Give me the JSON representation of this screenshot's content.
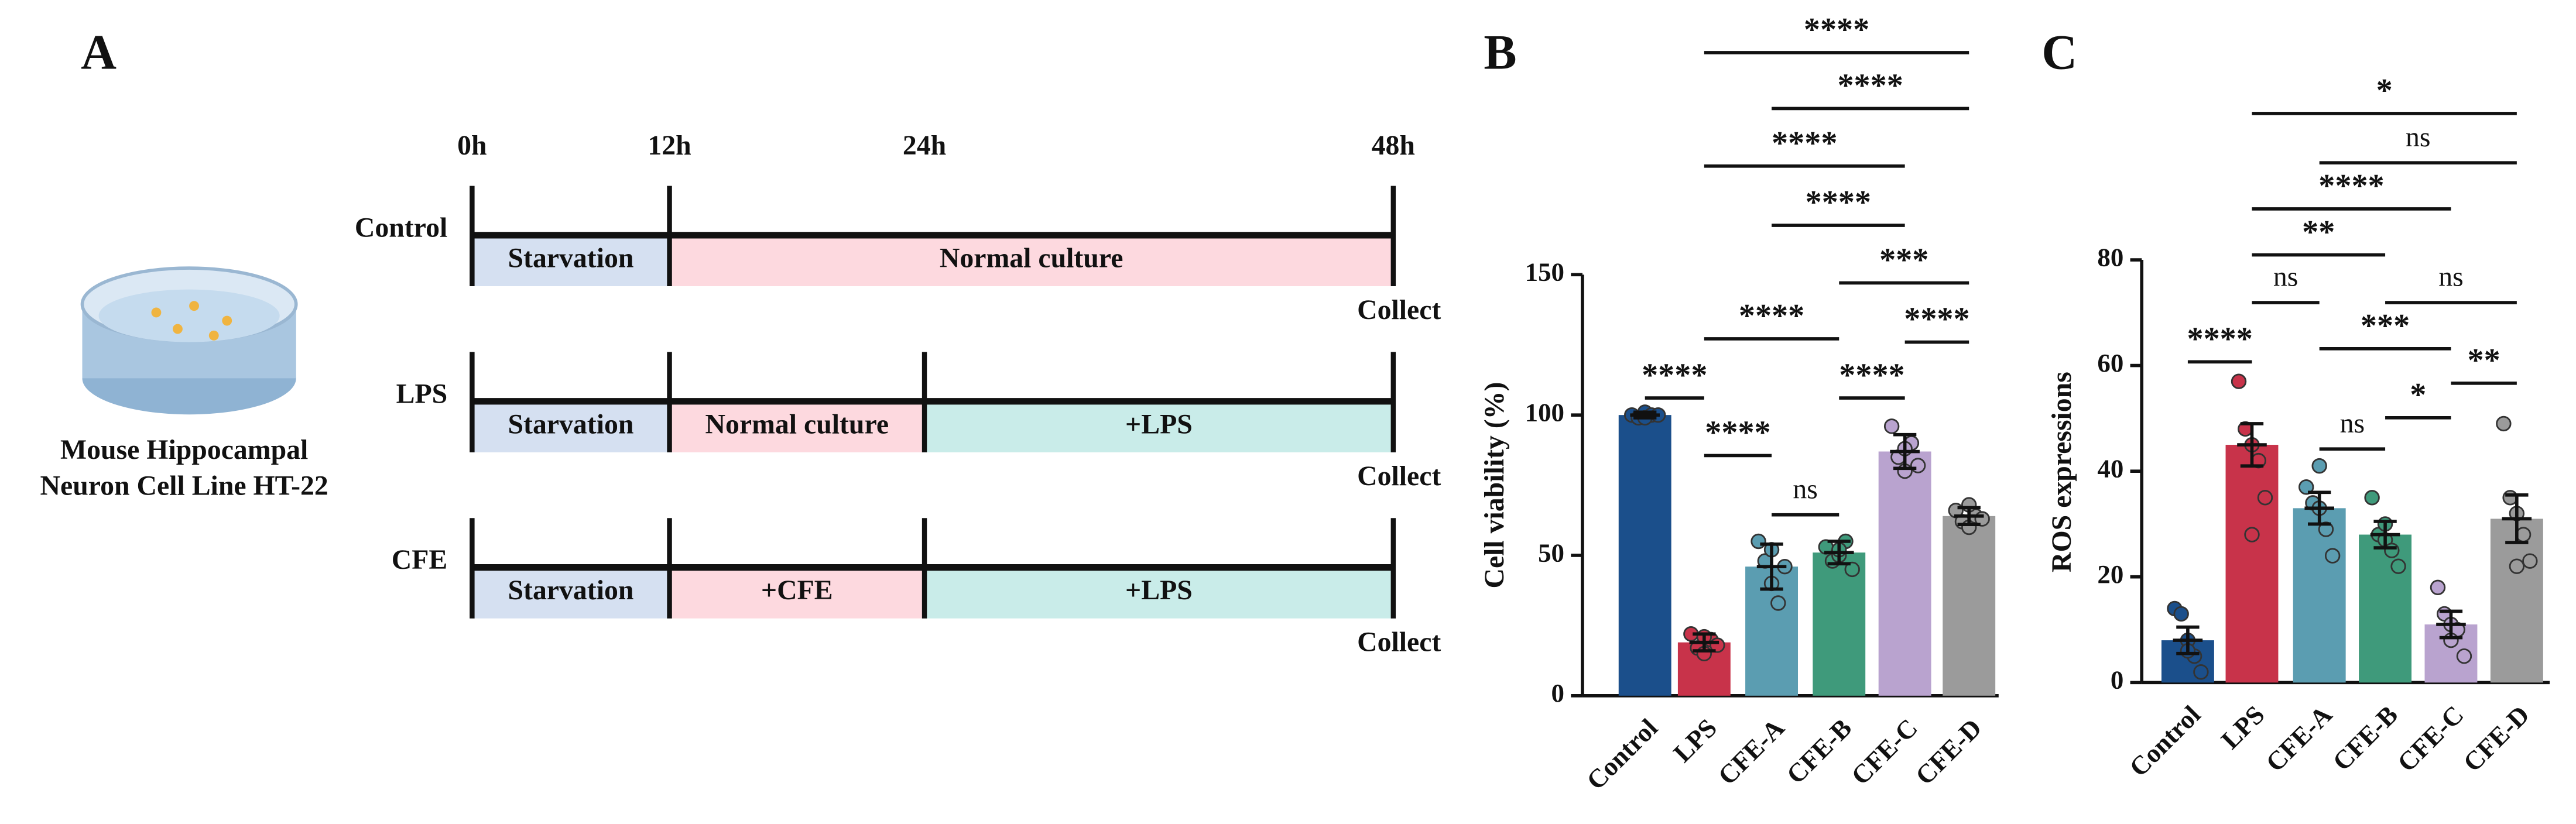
{
  "panel_a": {
    "letter": "A",
    "times": [
      "0h",
      "12h",
      "24h",
      "48h"
    ],
    "rows": [
      {
        "label": "Control",
        "segments": [
          {
            "text": "Starvation",
            "start": "0h",
            "end": "12h",
            "color": "#d5e0f1"
          },
          {
            "text": "Normal culture",
            "start": "12h",
            "end": "48h",
            "color": "#fdd9df"
          }
        ],
        "end_label": "Collect"
      },
      {
        "label": "LPS",
        "segments": [
          {
            "text": "Starvation",
            "start": "0h",
            "end": "12h",
            "color": "#d5e0f1"
          },
          {
            "text": "Normal culture",
            "start": "12h",
            "end": "24h",
            "color": "#fdd9df"
          },
          {
            "text": "+LPS",
            "start": "24h",
            "end": "48h",
            "color": "#c9ece9"
          }
        ],
        "end_label": "Collect"
      },
      {
        "label": "CFE",
        "segments": [
          {
            "text": "Starvation",
            "start": "0h",
            "end": "12h",
            "color": "#d5e0f1"
          },
          {
            "text": "+CFE",
            "start": "12h",
            "end": "24h",
            "color": "#fdd9df"
          },
          {
            "text": "+LPS",
            "start": "24h",
            "end": "48h",
            "color": "#c9ece9"
          }
        ],
        "end_label": "Collect"
      }
    ],
    "caption": [
      "Mouse Hippocampal",
      "Neuron Cell Line HT-22"
    ]
  },
  "chart_data": [
    {
      "type": "bar",
      "letter": "B",
      "ylabel": "Cell viability (%)",
      "categories": [
        "Control",
        "LPS",
        "CFE-A",
        "CFE-B",
        "CFE-C",
        "CFE-D"
      ],
      "colors": [
        "#1b4f8b",
        "#c8334a",
        "#5b9db1",
        "#3f9a7b",
        "#b9a3cf",
        "#9b9b9b"
      ],
      "values": [
        100,
        19,
        46,
        51,
        87,
        64
      ],
      "errors": [
        1,
        3,
        8,
        4,
        6,
        3
      ],
      "points": [
        [
          100,
          99,
          101,
          100,
          100,
          99
        ],
        [
          22,
          17,
          15,
          20,
          18,
          21
        ],
        [
          55,
          48,
          40,
          33,
          46,
          52
        ],
        [
          53,
          48,
          50,
          55,
          45,
          52
        ],
        [
          96,
          85,
          80,
          90,
          82,
          88
        ],
        [
          66,
          62,
          60,
          64,
          63,
          68
        ]
      ],
      "ylim": [
        0,
        150
      ],
      "yticks": [
        0,
        50,
        100,
        150
      ],
      "comparisons": [
        {
          "groups": [
            "LPS",
            "CFE-D"
          ],
          "label": "****"
        },
        {
          "groups": [
            "CFE-A",
            "CFE-D"
          ],
          "label": "****"
        },
        {
          "groups": [
            "LPS",
            "CFE-C"
          ],
          "label": "****"
        },
        {
          "groups": [
            "CFE-A",
            "CFE-C"
          ],
          "label": "****"
        },
        {
          "groups": [
            "CFE-B",
            "CFE-D"
          ],
          "label": "***"
        },
        {
          "groups": [
            "CFE-C",
            "CFE-D"
          ],
          "label": "****"
        },
        {
          "groups": [
            "LPS",
            "CFE-B"
          ],
          "label": "****"
        },
        {
          "groups": [
            "Control",
            "LPS"
          ],
          "label": "****"
        },
        {
          "groups": [
            "CFE-B",
            "CFE-C"
          ],
          "label": "****"
        },
        {
          "groups": [
            "LPS",
            "CFE-A"
          ],
          "label": "****"
        },
        {
          "groups": [
            "CFE-A",
            "CFE-B"
          ],
          "label": "ns"
        }
      ]
    },
    {
      "type": "bar",
      "letter": "C",
      "ylabel": "ROS expressions",
      "categories": [
        "Control",
        "LPS",
        "CFE-A",
        "CFE-B",
        "CFE-C",
        "CFE-D"
      ],
      "colors": [
        "#1b4f8b",
        "#c8334a",
        "#5b9db1",
        "#3f9a7b",
        "#b9a3cf",
        "#9b9b9b"
      ],
      "values": [
        8,
        45,
        33,
        28,
        11,
        31
      ],
      "errors": [
        2.5,
        4,
        3,
        2.5,
        2.5,
        4.5
      ],
      "points": [
        [
          14,
          13,
          8,
          5,
          2,
          6
        ],
        [
          57,
          48,
          45,
          42,
          35,
          28
        ],
        [
          37,
          34,
          33,
          29,
          24,
          41
        ],
        [
          35,
          28,
          27,
          25,
          22,
          30
        ],
        [
          18,
          13,
          11,
          10,
          5,
          8
        ],
        [
          49,
          35,
          32,
          28,
          23,
          22
        ]
      ],
      "ylim": [
        0,
        80
      ],
      "yticks": [
        0,
        20,
        40,
        60,
        80
      ],
      "comparisons": [
        {
          "groups": [
            "LPS",
            "CFE-D"
          ],
          "label": "*"
        },
        {
          "groups": [
            "CFE-A",
            "CFE-D"
          ],
          "label": "ns"
        },
        {
          "groups": [
            "LPS",
            "CFE-C"
          ],
          "label": "****"
        },
        {
          "groups": [
            "LPS",
            "CFE-B"
          ],
          "label": "**"
        },
        {
          "groups": [
            "LPS",
            "CFE-A"
          ],
          "label": "ns"
        },
        {
          "groups": [
            "CFE-B",
            "CFE-D"
          ],
          "label": "ns"
        },
        {
          "groups": [
            "Control",
            "LPS"
          ],
          "label": "****"
        },
        {
          "groups": [
            "CFE-A",
            "CFE-C"
          ],
          "label": "***"
        },
        {
          "groups": [
            "CFE-C",
            "CFE-D"
          ],
          "label": "**"
        },
        {
          "groups": [
            "CFE-B",
            "CFE-C"
          ],
          "label": "*"
        },
        {
          "groups": [
            "CFE-A",
            "CFE-B"
          ],
          "label": "ns"
        }
      ]
    }
  ]
}
